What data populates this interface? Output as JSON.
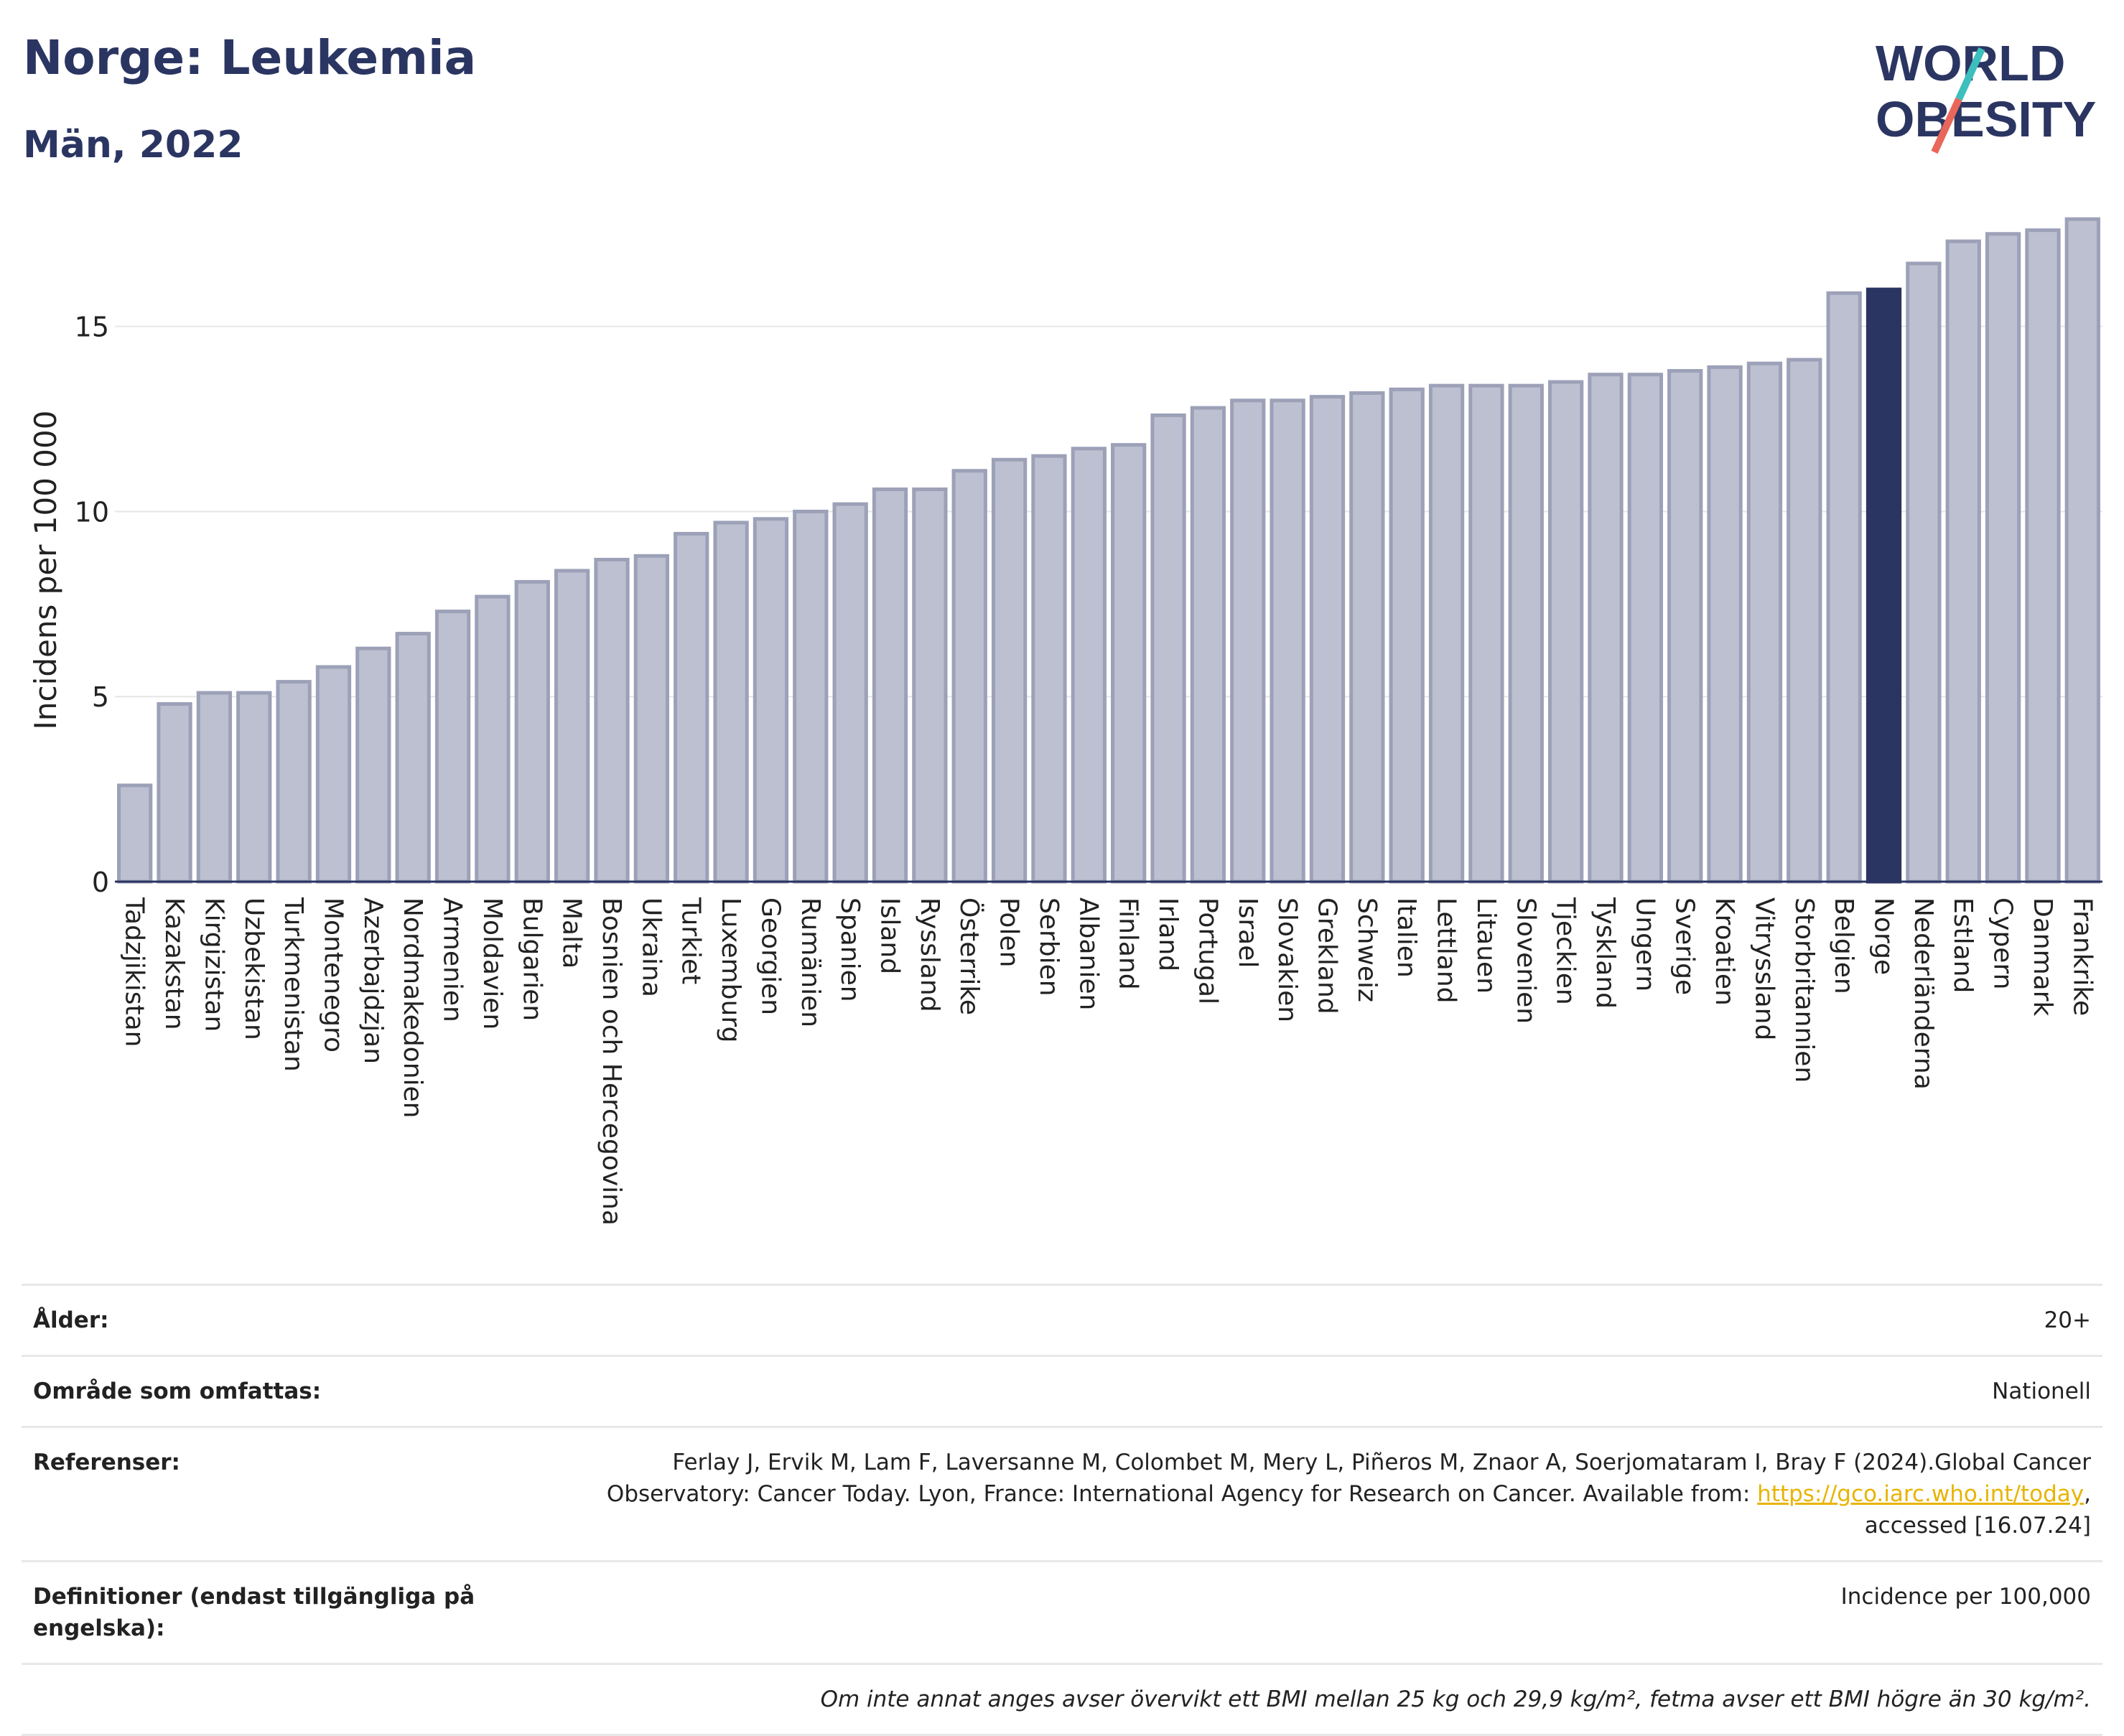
{
  "header": {
    "title": "Norge: Leukemia",
    "subtitle": "Män, 2022"
  },
  "logo": {
    "line1": "WORLD",
    "line2": "OBESITY",
    "colors": {
      "text": "#2b3562",
      "slash_teal": "#3cbfbd",
      "slash_red": "#e8675a"
    }
  },
  "chart_data": {
    "type": "bar",
    "ylabel": "Incidens per 100 000",
    "ylim": [
      0,
      18
    ],
    "yticks": [
      0,
      5,
      10,
      15
    ],
    "grid": true,
    "highlight": "Norge",
    "colors": {
      "bar": "#bcc0d0",
      "bar_border": "#9ca1b8",
      "highlight": "#2b3562"
    },
    "categories": [
      "Tadzjikistan",
      "Kazakstan",
      "Kirgizistan",
      "Uzbekistan",
      "Turkmenistan",
      "Montenegro",
      "Azerbajdzjan",
      "Nordmakedonien",
      "Armenien",
      "Moldavien",
      "Bulgarien",
      "Malta",
      "Bosnien och Hercegovina",
      "Ukraina",
      "Turkiet",
      "Luxemburg",
      "Georgien",
      "Rumänien",
      "Spanien",
      "Island",
      "Ryssland",
      "Österrike",
      "Polen",
      "Serbien",
      "Albanien",
      "Finland",
      "Irland",
      "Portugal",
      "Israel",
      "Slovakien",
      "Grekland",
      "Schweiz",
      "Italien",
      "Lettland",
      "Litauen",
      "Slovenien",
      "Tjeckien",
      "Tyskland",
      "Ungern",
      "Sverige",
      "Kroatien",
      "Vitryssland",
      "Storbritannien",
      "Belgien",
      "Norge",
      "Nederländerna",
      "Estland",
      "Cypern",
      "Danmark",
      "Frankrike"
    ],
    "values": [
      2.6,
      4.8,
      5.1,
      5.1,
      5.4,
      5.8,
      6.3,
      6.7,
      7.3,
      7.7,
      8.1,
      8.4,
      8.7,
      8.8,
      9.4,
      9.7,
      9.8,
      10.0,
      10.2,
      10.6,
      10.6,
      11.1,
      11.4,
      11.5,
      11.7,
      11.8,
      12.6,
      12.8,
      13.0,
      13.0,
      13.1,
      13.2,
      13.3,
      13.4,
      13.4,
      13.4,
      13.5,
      13.7,
      13.7,
      13.8,
      13.9,
      14.0,
      14.1,
      15.9,
      16.0,
      16.7,
      17.3,
      17.5,
      17.6,
      17.9
    ]
  },
  "info": {
    "age_label": "Ålder:",
    "age_value": "20+",
    "area_label": "Område som omfattas:",
    "area_value": "Nationell",
    "ref_label": "Referenser:",
    "ref_text1": "Ferlay J, Ervik M, Lam F, Laversanne M, Colombet M, Mery L, Piñeros M, Znaor A, Soerjomataram I, Bray F (2024).Global Cancer",
    "ref_text2": "Observatory: Cancer Today. Lyon, France: International Agency for Research on Cancer. Available from: ",
    "ref_link": "https://gco.iarc.who.int/today",
    "ref_text3": ",",
    "ref_text4": "accessed [16.07.24]",
    "def_label": "Definitioner (endast tillgängliga på engelska):",
    "def_value": "Incidence per 100,000",
    "note": "Om inte annat anges avser övervikt ett BMI mellan 25 kg och 29,9 kg/m², fetma avser ett BMI högre än 30 kg/m²."
  }
}
